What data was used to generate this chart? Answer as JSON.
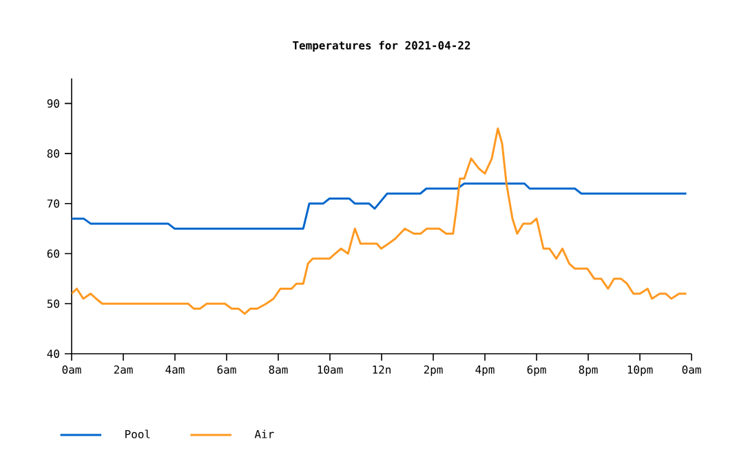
{
  "chart_data": {
    "type": "line",
    "title": "Temperatures for 2021-04-22",
    "xlim": [
      "2021-04-22T00:00",
      "2021-04-23T00:00"
    ],
    "ylim": [
      40,
      95
    ],
    "xticks": [
      {
        "value": "2021-04-22T00:00",
        "label": "0am"
      },
      {
        "value": "2021-04-22T02:00",
        "label": "2am"
      },
      {
        "value": "2021-04-22T04:00",
        "label": "4am"
      },
      {
        "value": "2021-04-22T06:00",
        "label": "6am"
      },
      {
        "value": "2021-04-22T08:00",
        "label": "8am"
      },
      {
        "value": "2021-04-22T10:00",
        "label": "10am"
      },
      {
        "value": "2021-04-22T12:00",
        "label": "12n"
      },
      {
        "value": "2021-04-22T14:00",
        "label": "2pm"
      },
      {
        "value": "2021-04-22T16:00",
        "label": "4pm"
      },
      {
        "value": "2021-04-22T18:00",
        "label": "6pm"
      },
      {
        "value": "2021-04-22T20:00",
        "label": "8pm"
      },
      {
        "value": "2021-04-22T22:00",
        "label": "10pm"
      },
      {
        "value": "2021-04-23T00:00",
        "label": "0am"
      }
    ],
    "yticks": [
      40,
      50,
      60,
      70,
      80,
      90
    ],
    "grid": false,
    "legend": "bottom left",
    "marker": "none",
    "line_style": "solid",
    "series": [
      {
        "name": "Pool",
        "color": "#0066cc",
        "x": [
          "2021-04-22T00:00",
          "2021-04-22T00:28",
          "2021-04-22T00:44",
          "2021-04-22T03:44",
          "2021-04-22T03:59",
          "2021-04-22T08:58",
          "2021-04-22T09:12",
          "2021-04-22T09:44",
          "2021-04-22T09:59",
          "2021-04-22T10:45",
          "2021-04-22T10:58",
          "2021-04-22T11:31",
          "2021-04-22T11:44",
          "2021-04-22T12:13",
          "2021-04-22T13:30",
          "2021-04-22T13:44",
          "2021-04-22T14:56",
          "2021-04-22T15:12",
          "2021-04-22T17:32",
          "2021-04-22T17:44",
          "2021-04-22T19:29",
          "2021-04-22T19:44",
          "2021-04-22T23:48"
        ],
        "values": [
          67,
          67,
          66,
          66,
          65,
          65,
          70,
          70,
          71,
          71,
          70,
          70,
          69,
          72,
          72,
          73,
          73,
          74,
          74,
          73,
          73,
          72,
          72
        ]
      },
      {
        "name": "Air",
        "color": "#ff9922",
        "x": [
          "2021-04-22T00:00",
          "2021-04-22T00:12",
          "2021-04-22T00:27",
          "2021-04-22T00:44",
          "2021-04-22T00:57",
          "2021-04-22T01:11",
          "2021-04-22T04:31",
          "2021-04-22T04:44",
          "2021-04-22T04:58",
          "2021-04-22T05:14",
          "2021-04-22T05:56",
          "2021-04-22T06:12",
          "2021-04-22T06:28",
          "2021-04-22T06:42",
          "2021-04-22T06:55",
          "2021-04-22T07:11",
          "2021-04-22T07:32",
          "2021-04-22T07:49",
          "2021-04-22T08:05",
          "2021-04-22T08:31",
          "2021-04-22T08:42",
          "2021-04-22T08:58",
          "2021-04-22T09:09",
          "2021-04-22T09:20",
          "2021-04-22T09:59",
          "2021-04-22T10:12",
          "2021-04-22T10:26",
          "2021-04-22T10:42",
          "2021-04-22T10:58",
          "2021-04-22T11:11",
          "2021-04-22T11:49",
          "2021-04-22T11:59",
          "2021-04-22T12:16",
          "2021-04-22T12:32",
          "2021-04-22T12:54",
          "2021-04-22T13:15",
          "2021-04-22T13:31",
          "2021-04-22T13:45",
          "2021-04-22T14:14",
          "2021-04-22T14:30",
          "2021-04-22T14:46",
          "2021-04-22T14:54",
          "2021-04-22T15:02",
          "2021-04-22T15:12",
          "2021-04-22T15:28",
          "2021-04-22T15:46",
          "2021-04-22T16:00",
          "2021-04-22T16:16",
          "2021-04-22T16:30",
          "2021-04-22T16:40",
          "2021-04-22T16:50",
          "2021-04-22T17:04",
          "2021-04-22T17:15",
          "2021-04-22T17:29",
          "2021-04-22T17:47",
          "2021-04-22T18:00",
          "2021-04-22T18:16",
          "2021-04-22T18:30",
          "2021-04-22T18:46",
          "2021-04-22T19:00",
          "2021-04-22T19:16",
          "2021-04-22T19:29",
          "2021-04-22T19:58",
          "2021-04-22T20:14",
          "2021-04-22T20:30",
          "2021-04-22T20:46",
          "2021-04-22T21:00",
          "2021-04-22T21:16",
          "2021-04-22T21:30",
          "2021-04-22T21:45",
          "2021-04-22T22:00",
          "2021-04-22T22:18",
          "2021-04-22T22:28",
          "2021-04-22T22:46",
          "2021-04-22T23:00",
          "2021-04-22T23:13",
          "2021-04-22T23:31",
          "2021-04-22T23:48"
        ],
        "values": [
          52,
          53,
          51,
          52,
          51,
          50,
          50,
          49,
          49,
          50,
          50,
          49,
          49,
          48,
          49,
          49,
          50,
          51,
          53,
          53,
          54,
          54,
          58,
          59,
          59,
          60,
          61,
          60,
          65,
          62,
          62,
          61,
          62,
          63,
          65,
          64,
          64,
          65,
          65,
          64,
          64,
          69,
          75,
          75,
          79,
          77,
          76,
          79,
          85,
          82,
          74,
          67,
          64,
          66,
          66,
          67,
          61,
          61,
          59,
          61,
          58,
          57,
          57,
          55,
          55,
          53,
          55,
          55,
          54,
          52,
          52,
          53,
          51,
          52,
          52,
          51,
          52,
          52
        ]
      }
    ]
  }
}
